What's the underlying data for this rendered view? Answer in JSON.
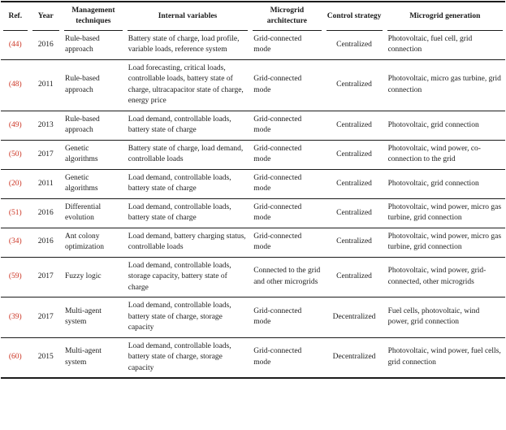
{
  "colors": {
    "ref_link": "#cc3322",
    "rule_line": "#1c1c1c",
    "text": "#1b1b1b",
    "background": "#ffffff"
  },
  "table": {
    "headers": [
      "Ref.",
      "Year",
      "Management techniques",
      "Internal variables",
      "Microgrid architecture",
      "Control strategy",
      "Microgrid generation"
    ],
    "rows": [
      {
        "ref": "(44)",
        "year": "2016",
        "technique": "Rule-based approach",
        "variables": "Battery state of charge, load profile, variable loads, reference system",
        "architecture": "Grid-connected mode",
        "strategy": "Centralized",
        "generation": "Photovoltaic, fuel cell, grid connection"
      },
      {
        "ref": "(48)",
        "year": "2011",
        "technique": "Rule-based approach",
        "variables": "Load forecasting, critical loads, controllable loads, battery state of charge, ultracapacitor state of charge, energy price",
        "architecture": "Grid-connected mode",
        "strategy": "Centralized",
        "generation": "Photovoltaic, micro gas turbine, grid connection"
      },
      {
        "ref": "(49)",
        "year": "2013",
        "technique": "Rule-based approach",
        "variables": "Load demand, controllable loads, battery state of charge",
        "architecture": "Grid-connected mode",
        "strategy": "Centralized",
        "generation": "Photovoltaic, grid connection"
      },
      {
        "ref": "(50)",
        "year": "2017",
        "technique": "Genetic algorithms",
        "variables": "Battery state of charge, load demand, controllable loads",
        "architecture": "Grid-connected mode",
        "strategy": "Centralized",
        "generation": "Photovoltaic, wind power, co-connection to the grid"
      },
      {
        "ref": "(20)",
        "year": "2011",
        "technique": "Genetic algorithms",
        "variables": "Load demand, controllable loads, battery state of charge",
        "architecture": "Grid-connected mode",
        "strategy": "Centralized",
        "generation": "Photovoltaic, grid connection"
      },
      {
        "ref": "(51)",
        "year": "2016",
        "technique": "Differential evolution",
        "variables": "Load demand, controllable loads, battery state of charge",
        "architecture": "Grid-connected mode",
        "strategy": "Centralized",
        "generation": "Photovoltaic, wind power, micro gas turbine, grid connection"
      },
      {
        "ref": "(34)",
        "year": "2016",
        "technique": "Ant colony optimization",
        "variables": "Load demand, battery charging status, controllable loads",
        "architecture": "Grid-connected mode",
        "strategy": "Centralized",
        "generation": "Photovoltaic, wind power, micro gas turbine, grid connection"
      },
      {
        "ref": "(59)",
        "year": "2017",
        "technique": "Fuzzy logic",
        "variables": "Load demand, controllable loads, storage capacity, battery state of charge",
        "architecture": "Connected to the grid and other microgrids",
        "strategy": "Centralized",
        "generation": "Photovoltaic, wind power, grid-connected, other microgrids"
      },
      {
        "ref": "(39)",
        "year": "2017",
        "technique": "Multi-agent system",
        "variables": "Load demand, controllable loads, battery state of charge, storage capacity",
        "architecture": "Grid-connected mode",
        "strategy": "Decentralized",
        "generation": "Fuel cells, photovoltaic, wind power, grid connection"
      },
      {
        "ref": "(60)",
        "year": "2015",
        "technique": "Multi-agent system",
        "variables": "Load demand, controllable loads, battery state of charge, storage capacity",
        "architecture": "Grid-connected mode",
        "strategy": "Decentralized",
        "generation": "Photovoltaic, wind power, fuel cells, grid connection"
      }
    ]
  }
}
